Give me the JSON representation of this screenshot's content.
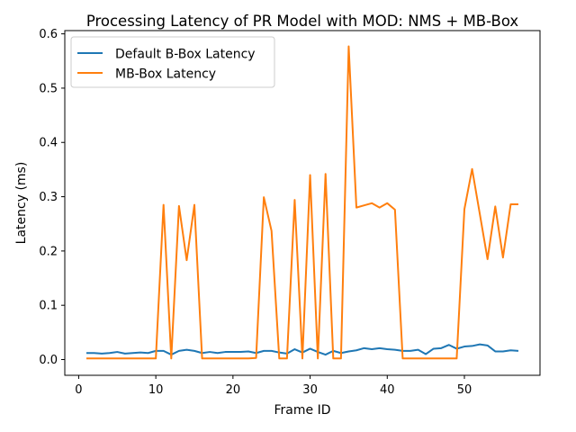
{
  "chart_data": {
    "type": "line",
    "title": "Processing Latency of PR Model with MOD: NMS + MB-Box",
    "xlabel": "Frame ID",
    "ylabel": "Latency (ms)",
    "xlim": [
      -1.8,
      59.8
    ],
    "ylim": [
      -0.029,
      0.606
    ],
    "xticks": [
      0,
      10,
      20,
      30,
      40,
      50
    ],
    "yticks": [
      0.0,
      0.1,
      0.2,
      0.3,
      0.4,
      0.5,
      0.6
    ],
    "ytick_labels": [
      "0.0",
      "0.1",
      "0.2",
      "0.3",
      "0.4",
      "0.5",
      "0.6"
    ],
    "grid": false,
    "legend_position": "top-left",
    "x": [
      1,
      2,
      3,
      4,
      5,
      6,
      7,
      8,
      9,
      10,
      11,
      12,
      13,
      14,
      15,
      16,
      17,
      18,
      19,
      20,
      21,
      22,
      23,
      24,
      25,
      26,
      27,
      28,
      29,
      30,
      31,
      32,
      33,
      34,
      35,
      36,
      37,
      38,
      39,
      40,
      41,
      42,
      43,
      44,
      45,
      46,
      47,
      48,
      49,
      50,
      51,
      52,
      53,
      54,
      55,
      56,
      57
    ],
    "series": [
      {
        "name": "Default B-Box Latency",
        "color": "#1f77b4",
        "values": [
          0.012,
          0.012,
          0.011,
          0.012,
          0.014,
          0.011,
          0.012,
          0.013,
          0.012,
          0.016,
          0.016,
          0.009,
          0.016,
          0.018,
          0.016,
          0.012,
          0.014,
          0.012,
          0.014,
          0.014,
          0.014,
          0.015,
          0.012,
          0.016,
          0.016,
          0.013,
          0.011,
          0.019,
          0.013,
          0.02,
          0.014,
          0.009,
          0.016,
          0.012,
          0.015,
          0.017,
          0.021,
          0.019,
          0.021,
          0.019,
          0.018,
          0.016,
          0.016,
          0.018,
          0.01,
          0.02,
          0.021,
          0.027,
          0.02,
          0.024,
          0.025,
          0.028,
          0.026,
          0.015,
          0.015,
          0.017,
          0.016
        ]
      },
      {
        "name": "MB-Box Latency",
        "color": "#ff7f0e",
        "values": [
          0.002,
          0.002,
          0.002,
          0.002,
          0.002,
          0.002,
          0.002,
          0.002,
          0.002,
          0.002,
          0.285,
          0.002,
          0.283,
          0.183,
          0.285,
          0.002,
          0.002,
          0.002,
          0.002,
          0.002,
          0.002,
          0.002,
          0.003,
          0.299,
          0.237,
          0.002,
          0.002,
          0.294,
          0.002,
          0.34,
          0.002,
          0.342,
          0.002,
          0.002,
          0.577,
          0.28,
          0.284,
          0.288,
          0.28,
          0.288,
          0.276,
          0.002,
          0.002,
          0.002,
          0.002,
          0.002,
          0.002,
          0.002,
          0.002,
          0.277,
          0.351,
          0.268,
          0.185,
          0.282,
          0.188,
          0.286,
          0.286
        ]
      }
    ]
  }
}
